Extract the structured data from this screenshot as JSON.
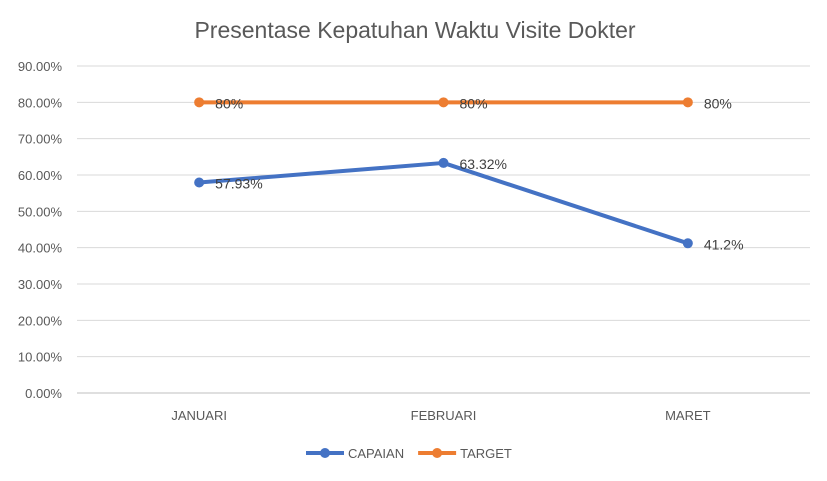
{
  "chart_data": {
    "type": "line",
    "title": "Presentase Kepatuhan Waktu Visite Dokter",
    "xlabel": "",
    "ylabel": "",
    "categories": [
      "JANUARI",
      "FEBRUARI",
      "MARET"
    ],
    "ylim": [
      0,
      90
    ],
    "yticks": [
      "0.00%",
      "10.00%",
      "20.00%",
      "30.00%",
      "40.00%",
      "50.00%",
      "60.00%",
      "70.00%",
      "80.00%",
      "90.00%"
    ],
    "grid": true,
    "legend": "bottom",
    "series": [
      {
        "name": "CAPAIAN",
        "color": "#4472C4",
        "values": [
          57.93,
          63.32,
          41.2
        ],
        "labels": [
          "57.93%",
          "63.32%",
          "41.2%"
        ]
      },
      {
        "name": "TARGET",
        "color": "#ED7D31",
        "values": [
          80,
          80,
          80
        ],
        "labels": [
          "80%",
          "80%",
          "80%"
        ]
      }
    ]
  }
}
